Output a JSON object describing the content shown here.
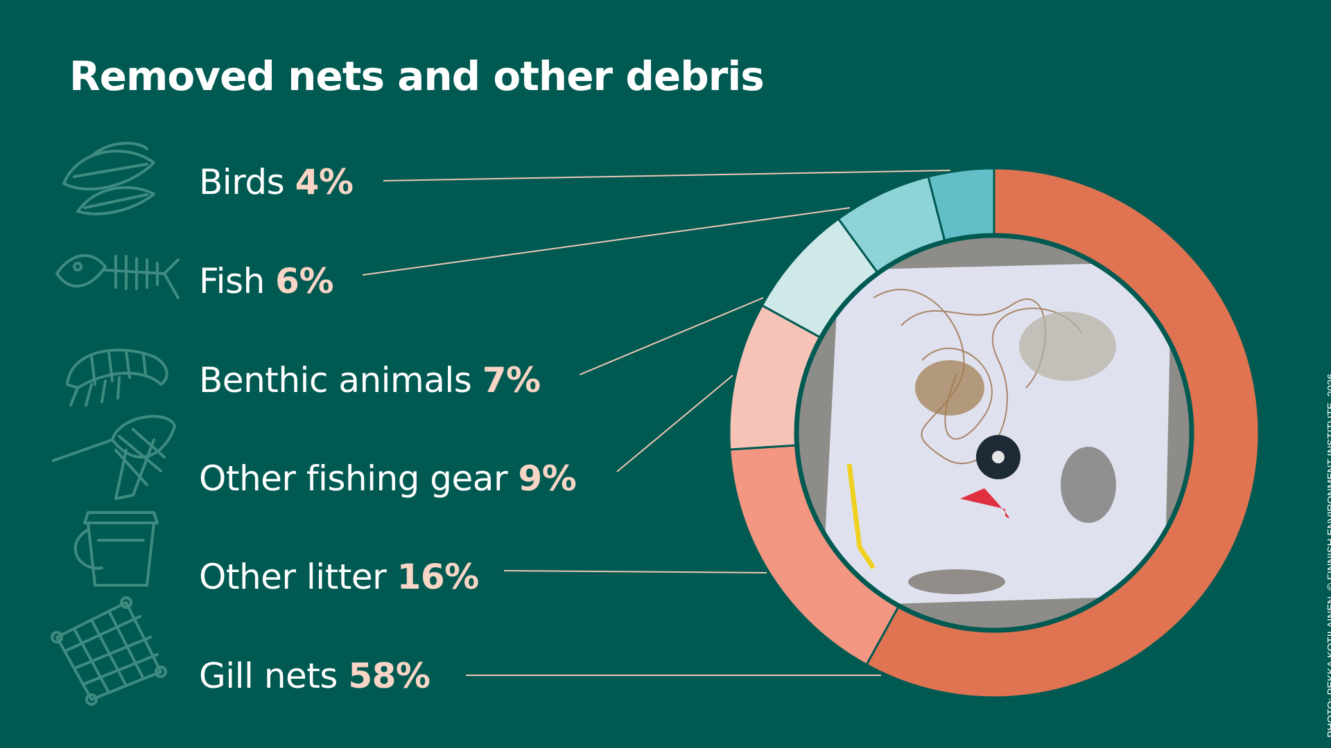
{
  "title": "Removed nets and other debris",
  "credit": "PHOTO: PEKKA KOTILAINEN. © FINNISH ENVIRONMENT INSTITUTE. 2026.",
  "colors": {
    "background": "#005a52",
    "percent_text": "#f9d5c5",
    "leader_line": "#f0c8b5",
    "icon_stroke": "#3f8b80"
  },
  "chart_data": {
    "type": "pie",
    "style": "donut",
    "title": "Removed nets and other debris",
    "unit": "%",
    "slices": [
      {
        "name": "Gill nets",
        "value": 58,
        "label": "58%",
        "color": "#df7352",
        "icon": "gill-net-icon"
      },
      {
        "name": "Other litter",
        "value": 16,
        "label": "16%",
        "color": "#f39682",
        "icon": "bucket-icon"
      },
      {
        "name": "Other fishing gear",
        "value": 9,
        "label": "9%",
        "color": "#f7c3b7",
        "icon": "landing-net-icon"
      },
      {
        "name": "Benthic animals",
        "value": 7,
        "label": "7%",
        "color": "#cfe8e8",
        "icon": "shrimp-icon"
      },
      {
        "name": "Fish",
        "value": 6,
        "label": "6%",
        "color": "#8ed3d8",
        "icon": "fish-skeleton-icon"
      },
      {
        "name": "Birds",
        "value": 4,
        "label": "4%",
        "color": "#62bfc8",
        "icon": "feather-icon"
      }
    ],
    "center_image": "photo of removed nets and debris on white plastic sheet"
  }
}
